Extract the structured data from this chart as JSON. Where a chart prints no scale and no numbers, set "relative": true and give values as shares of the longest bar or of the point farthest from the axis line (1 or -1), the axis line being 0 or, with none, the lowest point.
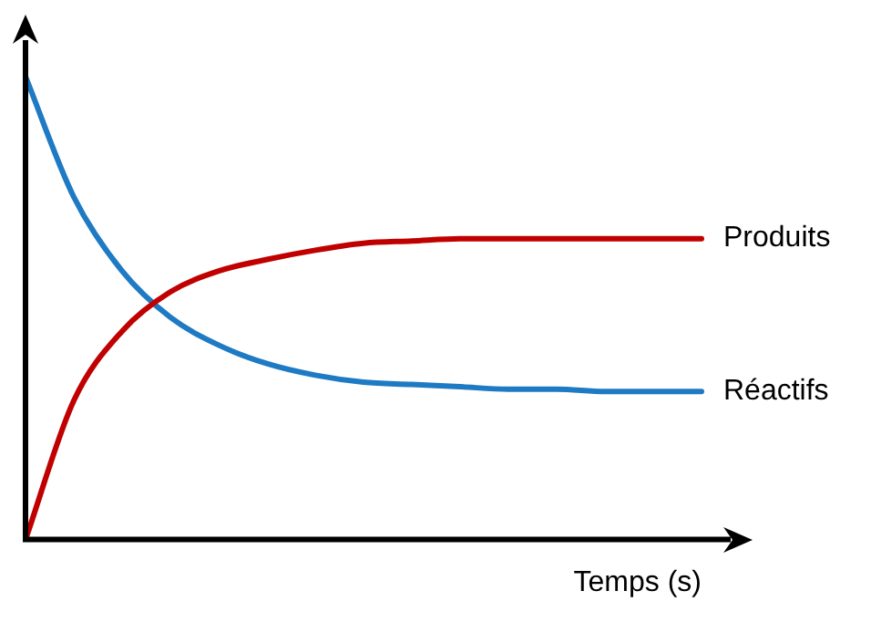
{
  "chart_data": {
    "type": "line",
    "relative": true,
    "xlabel": "Temps (s)",
    "categories": [
      null,
      null,
      null,
      null,
      null,
      null,
      null,
      null,
      null,
      null,
      null,
      null,
      null,
      null,
      null
    ],
    "legend": false,
    "grid": false,
    "marker": "none",
    "line_style": "solid",
    "series": [
      {
        "name": "Produits",
        "color": "#c00000",
        "values": [
          0,
          0.3,
          0.45,
          0.535,
          0.58,
          0.605,
          0.625,
          0.64,
          0.645,
          0.65,
          0.65,
          0.65,
          0.65,
          0.65,
          0.65
        ]
      },
      {
        "name": "Réactifs",
        "color": "#1f7ac4",
        "values": [
          1,
          0.74,
          0.58,
          0.48,
          0.42,
          0.38,
          0.355,
          0.34,
          0.335,
          0.33,
          0.325,
          0.325,
          0.32,
          0.32,
          0.32
        ]
      }
    ]
  }
}
